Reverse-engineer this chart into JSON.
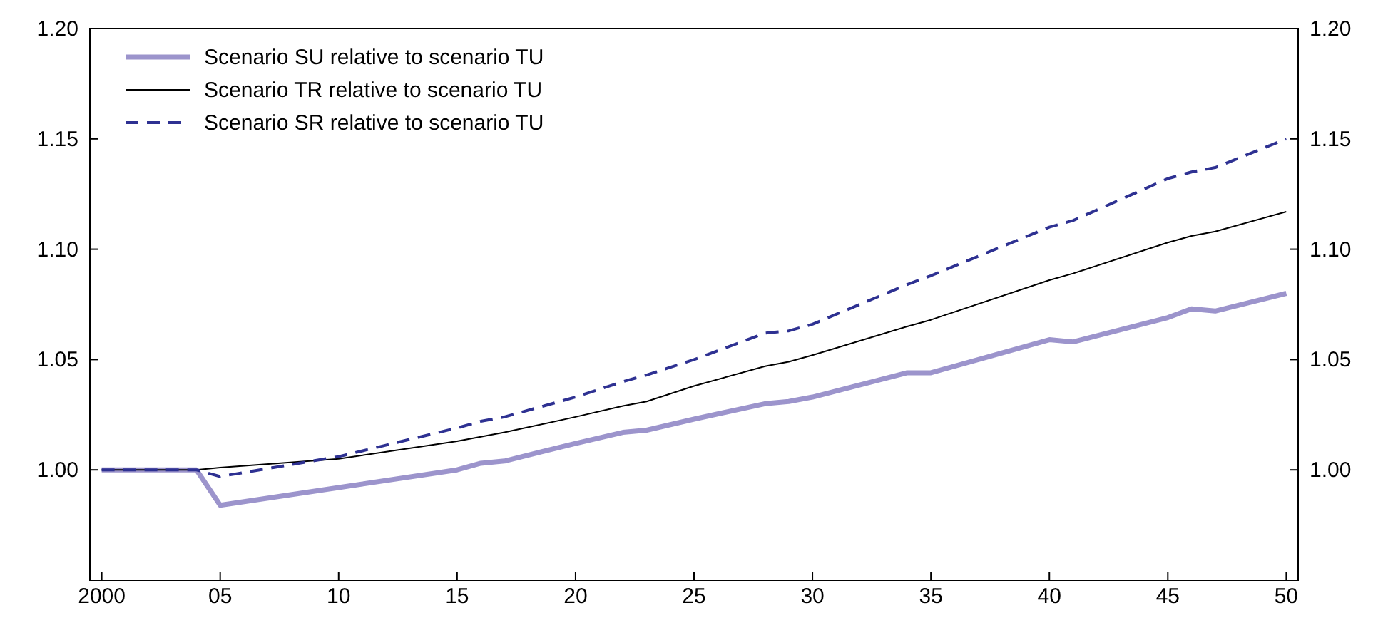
{
  "chart_data": {
    "type": "line",
    "x": [
      2000,
      2001,
      2002,
      2003,
      2004,
      2005,
      2010,
      2015,
      2016,
      2017,
      2020,
      2022,
      2023,
      2025,
      2028,
      2029,
      2030,
      2034,
      2035,
      2040,
      2041,
      2045,
      2046,
      2047,
      2050
    ],
    "series": [
      {
        "name": "Scenario SU relative to scenario TU",
        "color": "#9c94cc",
        "line_style": "solid",
        "values": [
          1.0,
          1.0,
          1.0,
          1.0,
          1.0,
          0.984,
          0.992,
          1.0,
          1.003,
          1.004,
          1.012,
          1.017,
          1.018,
          1.023,
          1.03,
          1.031,
          1.033,
          1.044,
          1.044,
          1.059,
          1.058,
          1.069,
          1.073,
          1.072,
          1.08
        ]
      },
      {
        "name": "Scenario TR relative to scenario TU",
        "color": "#000000",
        "line_style": "solid",
        "values": [
          1.0,
          1.0,
          1.0,
          null,
          1.0,
          1.001,
          1.005,
          1.013,
          1.015,
          1.017,
          1.024,
          1.029,
          1.031,
          1.038,
          1.047,
          1.049,
          1.052,
          1.065,
          1.068,
          1.086,
          1.089,
          1.103,
          1.106,
          1.108,
          1.117
        ]
      },
      {
        "name": "Scenario SR relative to scenario TU",
        "color": "#2e3192",
        "line_style": "dashed",
        "values": [
          1.0,
          1.0,
          1.0,
          1.0,
          1.0,
          0.997,
          1.006,
          1.019,
          1.022,
          1.024,
          1.033,
          1.04,
          1.043,
          1.05,
          1.062,
          1.063,
          1.066,
          1.084,
          1.088,
          1.11,
          1.113,
          1.132,
          1.135,
          1.137,
          1.15
        ]
      }
    ],
    "xlim": [
      1999.5,
      2050.5
    ],
    "xticks": [
      2000,
      {
        "value": 2005,
        "label": "05"
      },
      {
        "value": 2010,
        "label": "10"
      },
      {
        "value": 2015,
        "label": "15"
      },
      {
        "value": 2020,
        "label": "20"
      },
      {
        "value": 2025,
        "label": "25"
      },
      {
        "value": 2030,
        "label": "30"
      },
      {
        "value": 2035,
        "label": "35"
      },
      {
        "value": 2040,
        "label": "40"
      },
      {
        "value": 2045,
        "label": "45"
      },
      {
        "value": 2050,
        "label": "50"
      }
    ],
    "ylim": [
      0.95,
      1.2
    ],
    "yticks": [
      {
        "value": 1.0,
        "label": "1.00"
      },
      {
        "value": 1.05,
        "label": "1.05"
      },
      {
        "value": 1.1,
        "label": "1.10"
      },
      {
        "value": 1.15,
        "label": "1.15"
      },
      {
        "value": 1.2,
        "label": "1.20"
      }
    ],
    "y2lim": [
      0.95,
      1.2
    ],
    "y2ticks": [
      {
        "value": 1.0,
        "label": "1.00"
      },
      {
        "value": 1.05,
        "label": "1.05"
      },
      {
        "value": 1.1,
        "label": "1.10"
      },
      {
        "value": 1.15,
        "label": "1.15"
      },
      {
        "value": 1.2,
        "label": "1.20"
      }
    ],
    "grid": false,
    "legend": "top left",
    "marker": "none"
  }
}
